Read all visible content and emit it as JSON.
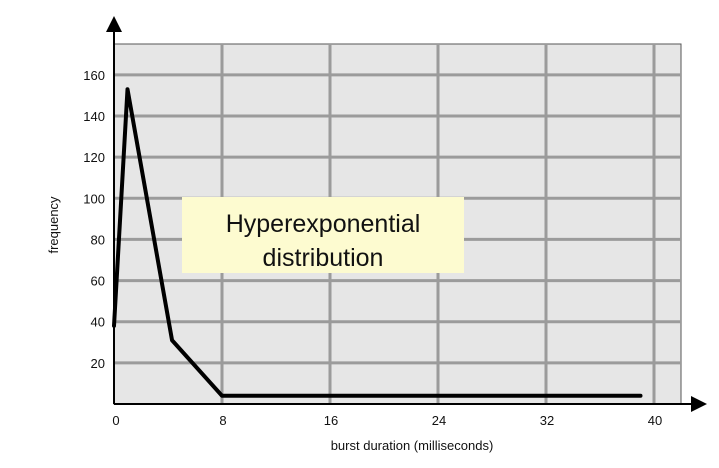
{
  "chart_data": {
    "type": "line",
    "xlabel": "burst duration (milliseconds)",
    "ylabel": "frequency",
    "xlim": [
      0,
      42
    ],
    "ylim": [
      0,
      175
    ],
    "x_ticks": [
      0,
      8,
      16,
      24,
      32,
      40
    ],
    "y_ticks": [
      20,
      40,
      60,
      80,
      100,
      120,
      140,
      160
    ],
    "grid_x": [
      0,
      8,
      16,
      24,
      32,
      40
    ],
    "grid_y": [
      20,
      40,
      60,
      80,
      100,
      120,
      140,
      160
    ],
    "grid": true,
    "series": [
      {
        "x": [
          0,
          1,
          4.3,
          8,
          39
        ],
        "y": [
          38,
          153,
          31,
          4,
          4
        ]
      }
    ],
    "annotations": [
      {
        "lines": [
          "Hyperexponential",
          "distribution"
        ]
      }
    ],
    "colors": {
      "plot_background": "#e6e6e6",
      "grid": "#9b9b9b",
      "line": "#000000",
      "annotation_background": "#fdfbd0"
    }
  }
}
